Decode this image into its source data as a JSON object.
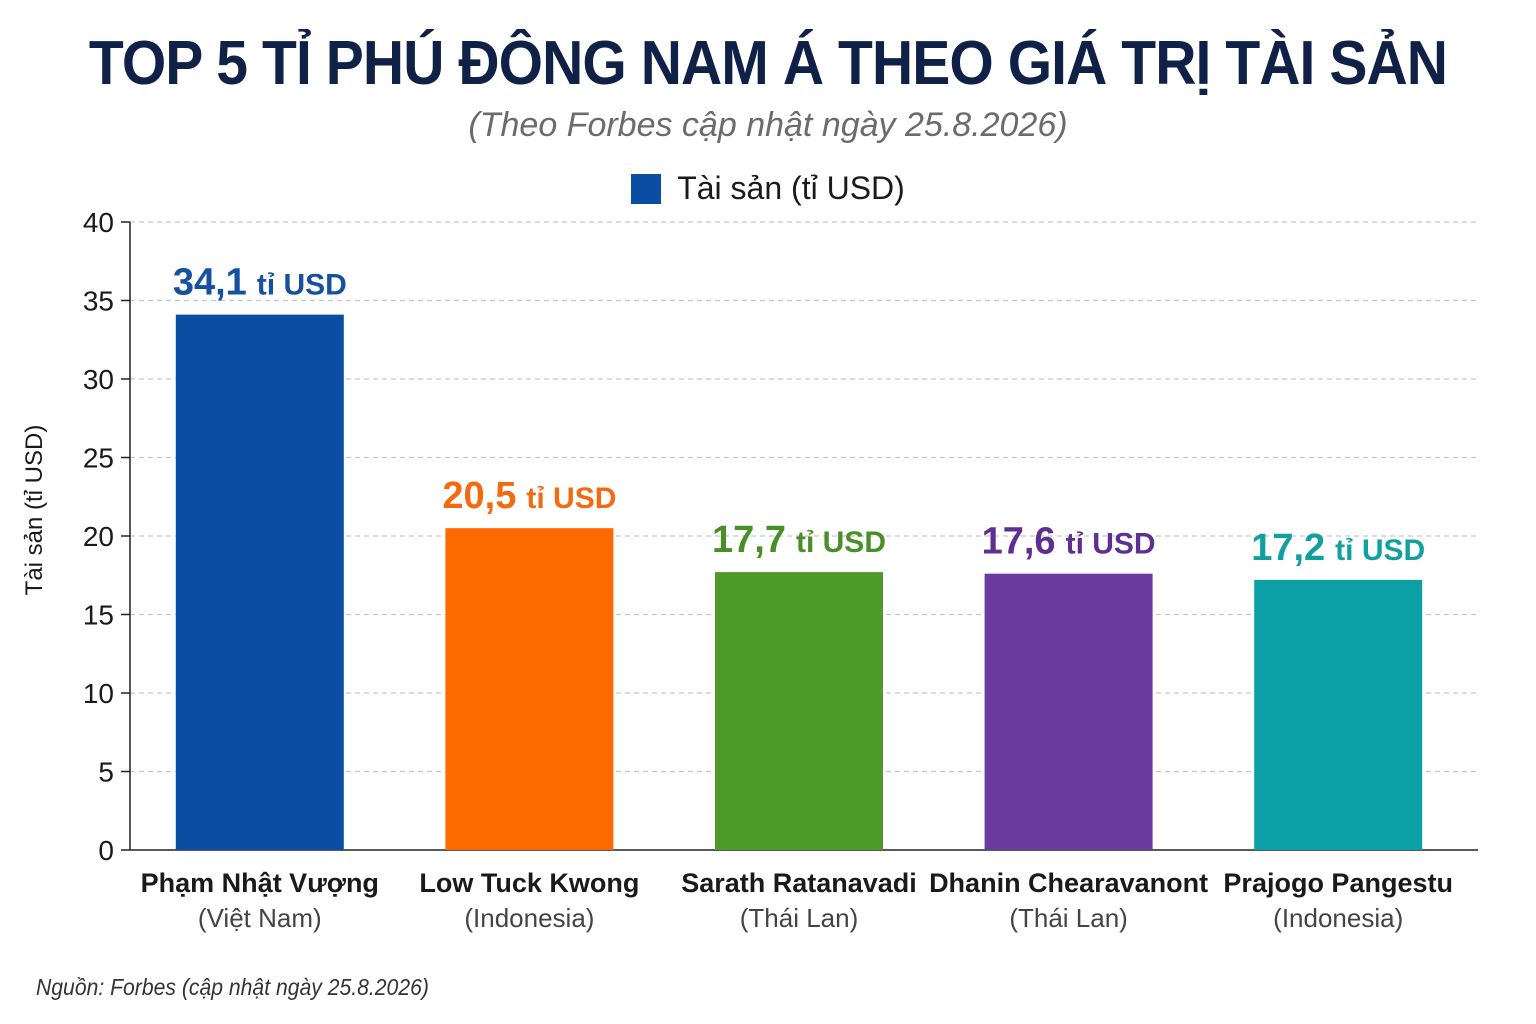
{
  "title": "TOP 5 TỈ PHÚ ĐÔNG NAM Á THEO GIÁ TRỊ TÀI SẢN",
  "subtitle": "(Theo Forbes cập nhật ngày 25.8.2026)",
  "legend": {
    "label": "Tài sản (tỉ USD)",
    "color": "#0a4ea3"
  },
  "source": "Nguồn: Forbes (cập nhật ngày 25.8.2026)",
  "chart_data": {
    "type": "bar",
    "title": "TOP 5 TỈ PHÚ ĐÔNG NAM Á THEO GIÁ TRỊ TÀI SẢN",
    "subtitle": "(Theo Forbes cập nhật ngày 25.8.2026)",
    "ylabel": "Tài sản (tỉ USD)",
    "xlabel": "",
    "ylim": [
      0,
      40
    ],
    "yticks": [
      0,
      5,
      10,
      15,
      20,
      25,
      30,
      35,
      40
    ],
    "grid": true,
    "legend_position": "top-center",
    "categories": [
      {
        "name": "Phạm Nhật Vượng",
        "country": "(Việt Nam)"
      },
      {
        "name": "Low Tuck Kwong",
        "country": "(Indonesia)"
      },
      {
        "name": "Sarath Ratanavadi",
        "country": "(Thái Lan)"
      },
      {
        "name": "Dhanin Chearavanont",
        "country": "(Thái Lan)"
      },
      {
        "name": "Prajogo Pangestu",
        "country": "(Indonesia)"
      }
    ],
    "series": [
      {
        "name": "Tài sản (tỉ USD)",
        "values": [
          34.1,
          20.5,
          17.7,
          17.6,
          17.2
        ],
        "labels": [
          {
            "number": "34,1",
            "unit": "tỉ USD"
          },
          {
            "number": "20,5",
            "unit": "tỉ USD"
          },
          {
            "number": "17,7",
            "unit": "tỉ USD"
          },
          {
            "number": "17,6",
            "unit": "tỉ USD"
          },
          {
            "number": "17,2",
            "unit": "tỉ USD"
          }
        ],
        "colors": [
          "#0a4ea3",
          "#ff6a00",
          "#4e9a2a",
          "#6a3a9e",
          "#0aa0a6"
        ],
        "label_colors": [
          "#1650a0",
          "#f46a10",
          "#4a8e2a",
          "#5e2f90",
          "#10a0a0"
        ]
      }
    ]
  }
}
